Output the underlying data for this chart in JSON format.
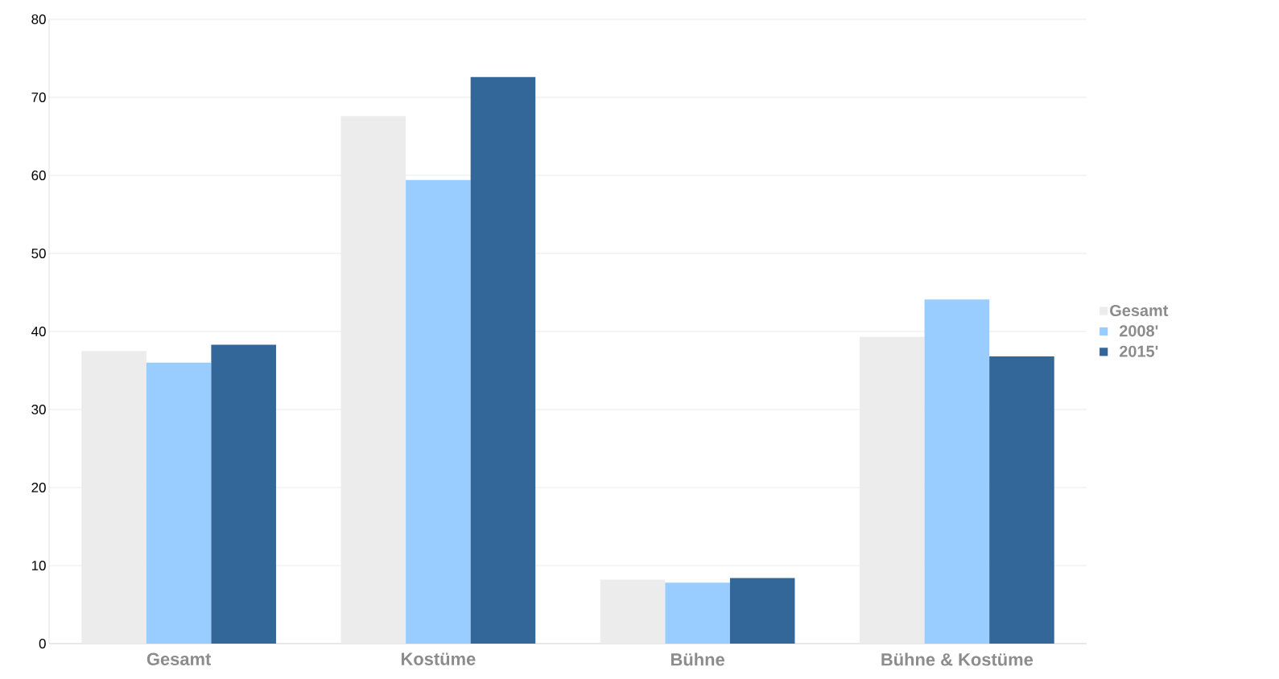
{
  "chart_data": {
    "type": "bar",
    "categories": [
      "Gesamt",
      "Kostüme",
      "Bühne",
      "Bühne & Kostüme"
    ],
    "series": [
      {
        "name": "Gesamt",
        "color": "#ececec",
        "values": [
          37.5,
          67.6,
          8.2,
          39.3
        ]
      },
      {
        "name": "2008'",
        "color": "#99ccff",
        "values": [
          36.0,
          59.4,
          7.8,
          44.1
        ]
      },
      {
        "name": "2015'",
        "color": "#336699",
        "values": [
          38.3,
          72.6,
          8.4,
          36.8
        ]
      }
    ],
    "ylim": [
      0,
      80
    ],
    "yticks": [
      0,
      10,
      20,
      30,
      40,
      50,
      60,
      70,
      80
    ],
    "grid": "y",
    "legend": "right"
  }
}
